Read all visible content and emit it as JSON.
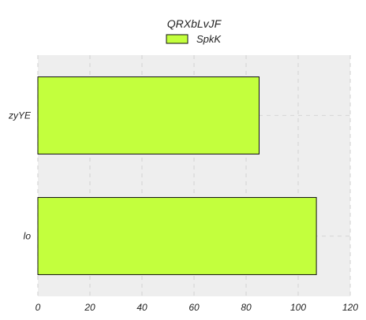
{
  "chart_data": {
    "type": "bar",
    "orientation": "horizontal",
    "title": "QRXbLvJF",
    "categories": [
      "zyYE",
      "lo"
    ],
    "series": [
      {
        "name": "SpkK",
        "values": [
          85,
          107
        ],
        "color": "#c3ff3d"
      }
    ],
    "xlim": [
      0,
      120
    ],
    "xticks": [
      0,
      20,
      40,
      60,
      80,
      100,
      120
    ],
    "xlabel": "",
    "ylabel": "",
    "grid": true,
    "legend_position": "top-center",
    "plot_background": "#eeeeee",
    "bar_edge_color": "#111111"
  }
}
